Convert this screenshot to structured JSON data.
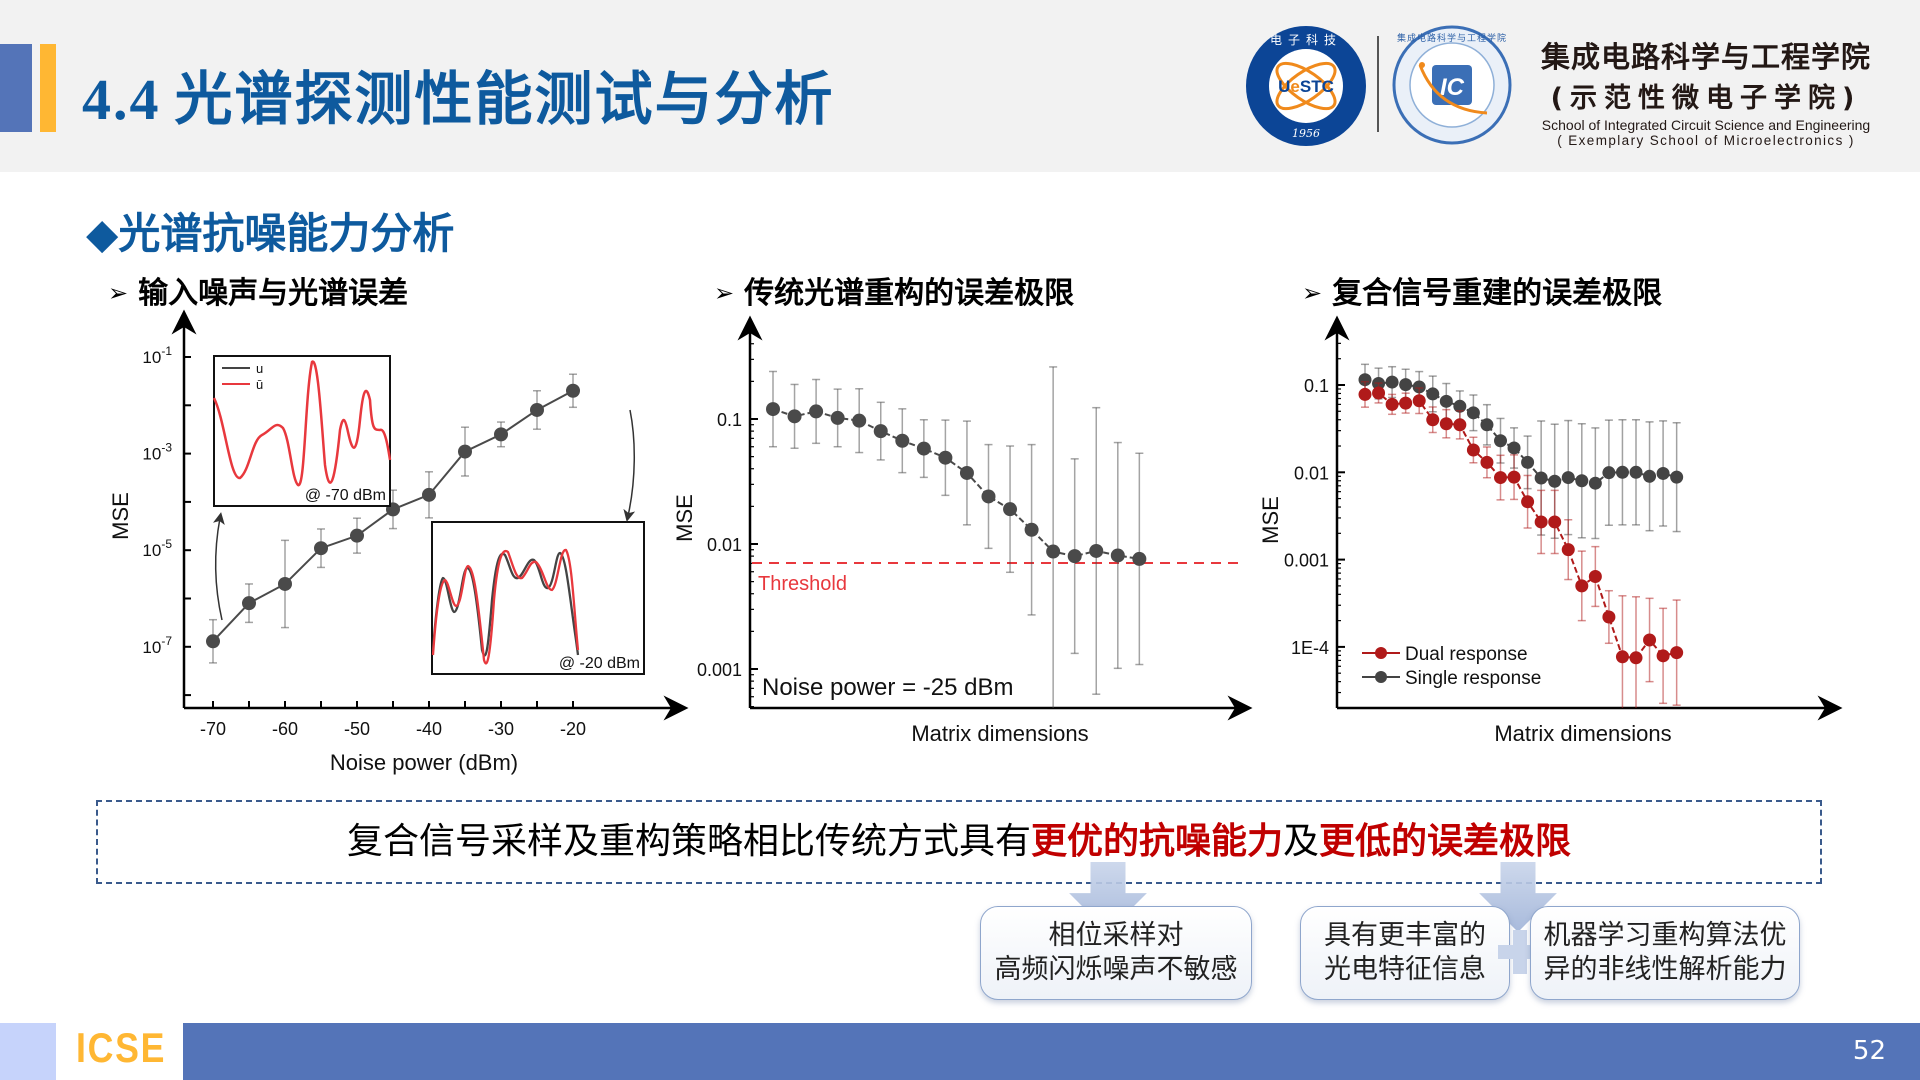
{
  "header": {
    "section_number": "4.4",
    "title": "光谱探测性能测试与分析",
    "logos": {
      "uestc": {
        "text": "UeSTC",
        "year": "1956",
        "ring_text": "电子科技大学"
      },
      "ic": {
        "text": "IC",
        "ring_text": "集成电路科学与工程学院"
      }
    },
    "school_zh": "集成电路科学与工程学院",
    "school_zh_sub": "(示范性微电子学院)",
    "school_en": "School of Integrated Circuit Science and Engineering",
    "school_en_sub": "( Exemplary School of Microelectronics )"
  },
  "section": {
    "bullet": "◆",
    "title": "光谱抗噪能力分析"
  },
  "subheadings": [
    {
      "arrow": "➢",
      "label": "输入噪声与光谱误差"
    },
    {
      "arrow": "➢",
      "label": "传统光谱重构的误差极限"
    },
    {
      "arrow": "➢",
      "label": "复合信号重建的误差极限"
    }
  ],
  "chart_data": [
    {
      "type": "line",
      "title": "输入噪声与光谱误差",
      "xlabel": "Noise power (dBm)",
      "ylabel": "MSE",
      "yscale": "log",
      "x": [
        -70,
        -65,
        -60,
        -55,
        -50,
        -45,
        -40,
        -35,
        -30,
        -25,
        -20
      ],
      "values": [
        1.3e-07,
        8e-07,
        2e-06,
        1.1e-05,
        2e-05,
        7e-05,
        0.00014,
        0.0011,
        0.0025,
        0.008,
        0.02
      ],
      "xticks": [
        "-70",
        "-60",
        "-50",
        "-40",
        "-30",
        "-20"
      ],
      "yticks": [
        "10-1",
        "10-3",
        "10-5",
        "10-7"
      ],
      "ylim": [
        1e-08,
        0.1
      ],
      "insets": [
        {
          "label": "@ -70 dBm",
          "legend": [
            "u",
            "ū"
          ]
        },
        {
          "label": "@ -20 dBm"
        }
      ]
    },
    {
      "type": "line",
      "title": "传统光谱重构的误差极限",
      "xlabel": "Matrix dimensions",
      "ylabel": "MSE",
      "yscale": "log",
      "values": [
        0.12,
        0.105,
        0.115,
        0.102,
        0.097,
        0.08,
        0.067,
        0.058,
        0.049,
        0.037,
        0.024,
        0.019,
        0.013,
        0.0087,
        0.008,
        0.0088,
        0.0081,
        0.0076
      ],
      "yticks": [
        "0.1",
        "0.01",
        "0.001"
      ],
      "threshold": 0.007,
      "threshold_label": "Threshold",
      "annotation": "Noise power = -25 dBm"
    },
    {
      "type": "line",
      "title": "复合信号重建的误差极限",
      "xlabel": "Matrix dimensions",
      "ylabel": "MSE",
      "yscale": "log",
      "yticks": [
        "0.1",
        "0.01",
        "0.001",
        "1E-4"
      ],
      "series": [
        {
          "name": "Dual response",
          "color": "#b01a1a",
          "values": [
            0.078,
            0.081,
            0.06,
            0.062,
            0.066,
            0.04,
            0.036,
            0.035,
            0.018,
            0.013,
            0.0087,
            0.0088,
            0.0046,
            0.0027,
            0.0027,
            0.0013,
            0.0005,
            0.00064,
            0.00022,
            7.7e-05,
            7.5e-05,
            0.00012,
            7.9e-05,
            8.6e-05
          ]
        },
        {
          "name": "Single response",
          "color": "#444444",
          "values": [
            0.115,
            0.104,
            0.108,
            0.101,
            0.095,
            0.079,
            0.065,
            0.057,
            0.048,
            0.035,
            0.023,
            0.019,
            0.013,
            0.0086,
            0.0079,
            0.0087,
            0.008,
            0.0075,
            0.0099,
            0.01,
            0.01,
            0.009,
            0.0097,
            0.0088
          ]
        }
      ]
    }
  ],
  "summary": {
    "prefix": "复合信号采样及重构策略相比传统方式具有",
    "highlight1": "更优的抗噪能力",
    "mid": "及",
    "highlight2": "更低的误差极限"
  },
  "boxes": [
    {
      "line1": "相位采样对",
      "line2": "高频闪烁噪声不敏感"
    },
    {
      "line1": "具有更丰富的",
      "line2": "光电特征信息"
    },
    {
      "line1": "机器学习重构算法优",
      "line2": "异的非线性解析能力"
    }
  ],
  "footer": {
    "brand": "ICSE",
    "page_number": "52"
  },
  "colors": {
    "title_blue": "#0e5a9e",
    "accent_orange": "#ffb733",
    "footer_blue": "#5474b8",
    "highlight_red": "#c00000"
  }
}
